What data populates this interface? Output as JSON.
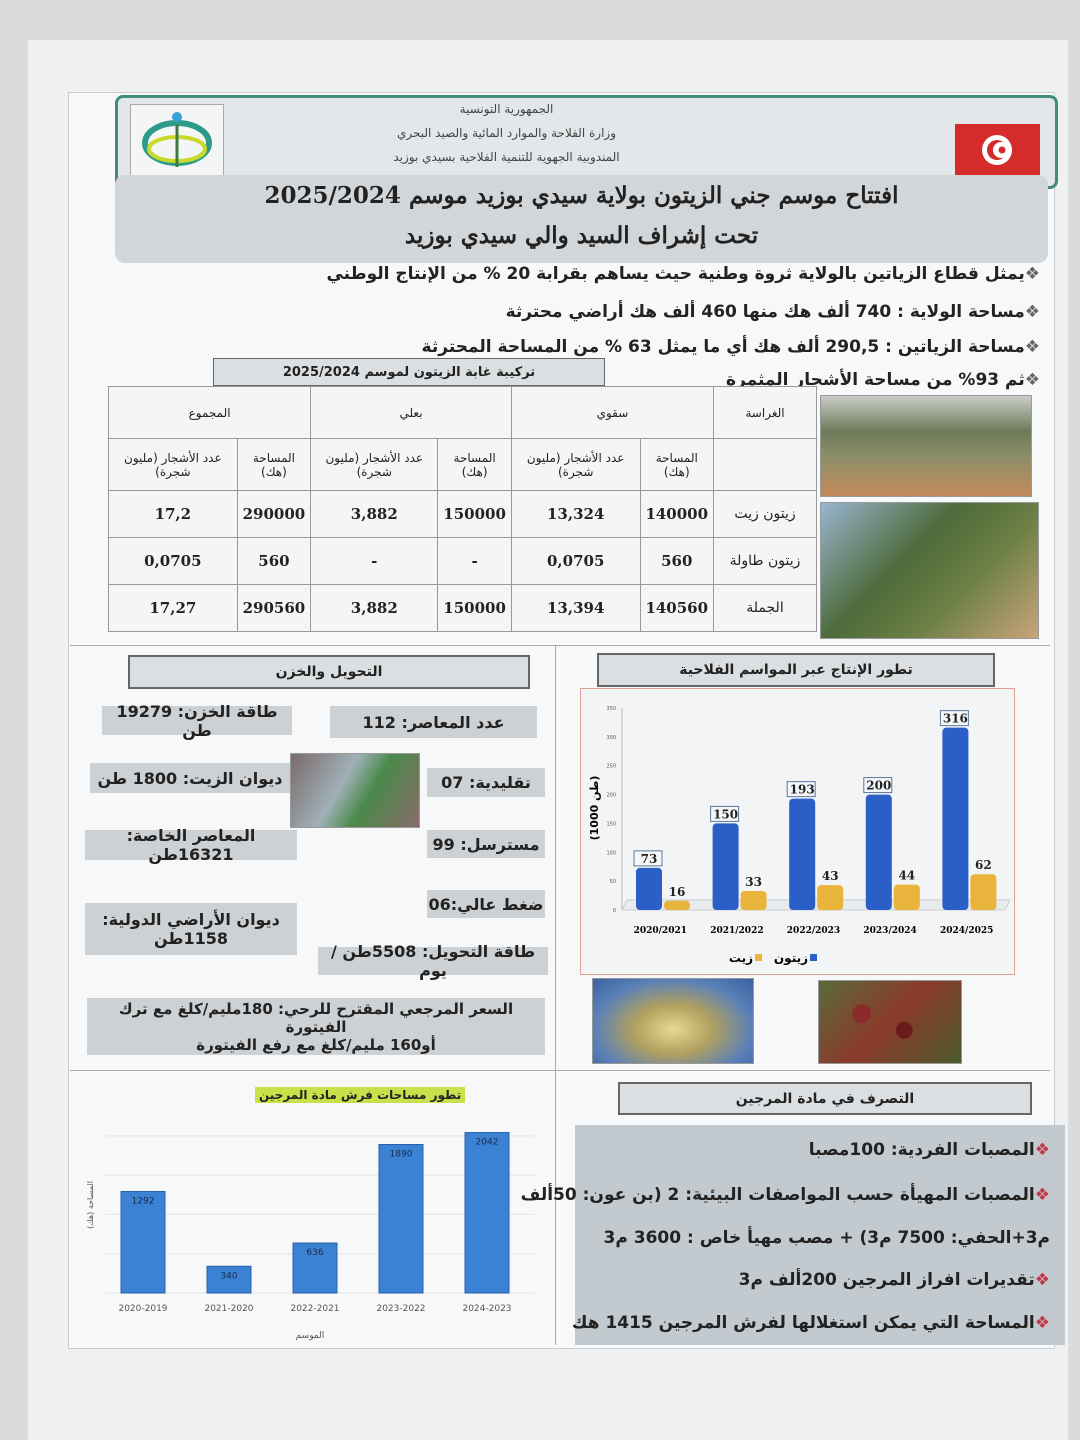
{
  "header": {
    "line1": "الجمهورية التونسية",
    "line2": "وزارة الفلاحة والموارد المائية والصيد البحري",
    "line3": "المندوبية الجهوية للتنمية الفلاحية بسيدي بوزيد",
    "flag_color": "#d62b2b"
  },
  "title": {
    "line1": "افتتاح موسم جني الزيتون بولاية سيدي بوزيد موسم 2025/2024",
    "line2": "تحت إشراف السيد والي سيدي بوزيد"
  },
  "bullets": [
    "يمثل قطاع الزياتين بالولاية ثروة وطنية حيث يساهم بقرابة 20 % من الإنتاج الوطني",
    "مساحة الولاية : 740 ألف هك منها 460 ألف هك أراضي محترثة",
    "مساحة الزياتين : 290,5 ألف هك أي ما يمثل 63 % من المساحة المحترثة",
    "ثم 93% من مساحة الأشجار المثمرة"
  ],
  "table": {
    "caption": "تركيبة غابة الزيتون لموسم 2025/2024",
    "group_headers": [
      "الغراسة",
      "سقوي",
      "بعلي",
      "المجموع"
    ],
    "sub_headers": [
      "المساحة (هك)",
      "عدد الأشجار (مليون شجرة)"
    ],
    "rows": [
      {
        "label": "زيتون زيت",
        "values": [
          "140000",
          "13,324",
          "150000",
          "3,882",
          "290000",
          "17,2"
        ]
      },
      {
        "label": "زيتون طاولة",
        "values": [
          "560",
          "0,0705",
          "-",
          "-",
          "560",
          "0,0705"
        ]
      },
      {
        "label": "الجملة",
        "values": [
          "140560",
          "13,394",
          "150000",
          "3,882",
          "290560",
          "17,27"
        ]
      }
    ]
  },
  "transform": {
    "title": "التحويل والخزن",
    "presses": "عدد المعاصر: 112",
    "storage": "طاقة الخزن: 19279 طن",
    "traditional": "تقليدية: 07",
    "oil_office": "ديوان الزيت: 1800 طن",
    "continuous": "مسترسل: 99",
    "private_presses": "المعاصر الخاصة: 16321طن",
    "high_pressure": "ضغط عالي:06",
    "state_lands_1": "ديوان الأراضي الدولية:",
    "state_lands_2": "1158طن",
    "capacity": "طاقة التحويل: 5508طن /يوم",
    "price_1": "السعر المرجعي المقترح للرحي: 180مليم/كلغ مع ترك الفيتورة",
    "price_2": "أو160 مليم/كلغ مع رفع الفيتورة"
  },
  "margine": {
    "title": "التصرف في مادة المرجين",
    "items": [
      "المصبات الفردية: 100مصبا",
      "المصبات المهيأة حسب المواصفات البيئية: 2 (بن عون: 50ألف",
      "م3+الحفي: 7500 م3) + مصب مهيأ خاص : 3600 م3",
      "تقديرات افراز المرجين 200ألف م3",
      "المساحة التي يمكن استغلالها لفرش المرجين 1415 هك"
    ]
  },
  "chart_data": [
    {
      "type": "bar",
      "title": "تطور الإنتاج عبر المواسم الفلاحية",
      "categories": [
        "2020/2021",
        "2021/2022",
        "2022/2023",
        "2023/2024",
        "2024/2025"
      ],
      "ylabel": "(1000 طن)",
      "ylim": [
        0,
        350
      ],
      "yticks": [
        0,
        50,
        100,
        150,
        200,
        250,
        300,
        350
      ],
      "legend": "bottom",
      "series": [
        {
          "name": "زيتون",
          "color": "#2a5fc8",
          "values": [
            73,
            150,
            193,
            200,
            316
          ]
        },
        {
          "name": "زيت",
          "color": "#e8b43c",
          "values": [
            16,
            33,
            43,
            44,
            62
          ]
        }
      ]
    },
    {
      "type": "bar",
      "title": "تطور مساحات فرش مادة المرجين",
      "categories": [
        "2020-2019",
        "2021-2020",
        "2022-2021",
        "2023-2022",
        "2024-2023"
      ],
      "xlabel": "الموسم",
      "ylabel": "المساحة (هك)",
      "ylim": [
        0,
        2100
      ],
      "grid": true,
      "series": [
        {
          "color": "#3c82d4",
          "values": [
            1292,
            340,
            636,
            1890,
            2042
          ]
        }
      ]
    }
  ]
}
